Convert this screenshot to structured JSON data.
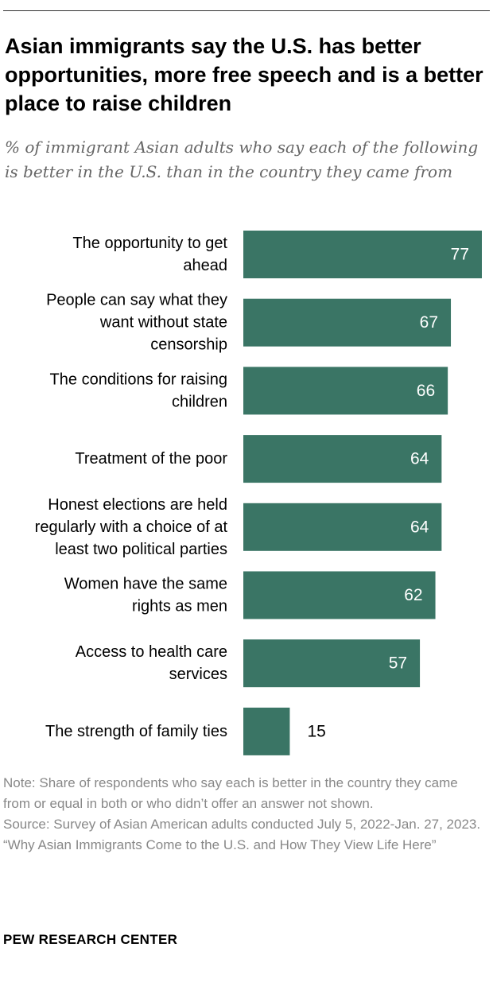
{
  "title": "Asian immigrants say the U.S. has better opportunities, more free speech and is a better place to raise children",
  "subtitle": "% of immigrant Asian adults who say each of the following is better in the U.S. than in the country they came from",
  "chart_data": {
    "type": "bar",
    "orientation": "horizontal",
    "categories": [
      [
        "The opportunity to get",
        "ahead"
      ],
      [
        "People can say what they",
        "want without state",
        "censorship"
      ],
      [
        "The conditions for raising",
        "children"
      ],
      [
        "Treatment of the poor"
      ],
      [
        "Honest elections are held",
        "regularly with a choice of at",
        "least two political parties"
      ],
      [
        "Women have the same",
        "rights as men"
      ],
      [
        "Access to health care",
        "services"
      ],
      [
        "The strength of family ties"
      ]
    ],
    "values": [
      77,
      67,
      66,
      64,
      64,
      62,
      57,
      15
    ],
    "xlim": [
      0,
      77
    ],
    "grid": false,
    "legend": "none",
    "bar_color": "#3a7565",
    "inside_label_color": "#ffffff",
    "outside_label_color": "#000000"
  },
  "notes": {
    "note": "Note: Share of respondents who say each is better in the country they came from or equal in both or who didn’t offer an answer not shown.",
    "source": "Source: Survey of Asian American adults conducted July 5, 2022-Jan. 27, 2023.",
    "report": "“Why Asian Immigrants Come to the U.S. and How They View Life Here”"
  },
  "brand": "PEW RESEARCH CENTER"
}
